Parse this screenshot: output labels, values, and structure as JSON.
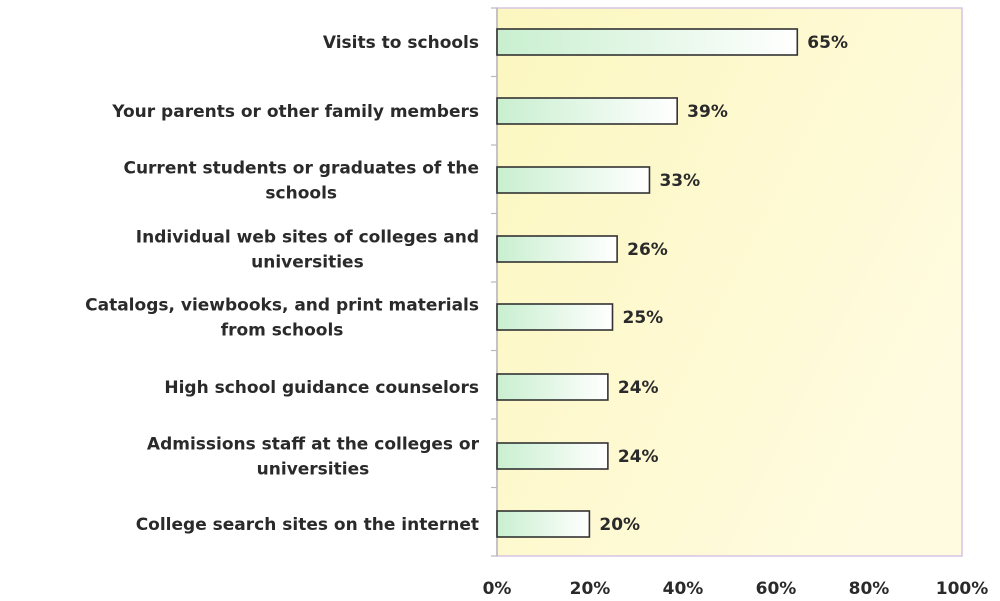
{
  "chart_data": {
    "type": "bar",
    "orientation": "horizontal",
    "categories": [
      "Visits to schools",
      "Your parents or other family members",
      "Current students or graduates of the schools",
      "Individual web sites of colleges and universities",
      "Catalogs, viewbooks, and print materials from schools",
      "High school guidance counselors",
      "Admissions staff at the colleges or universities",
      "College search sites on the internet"
    ],
    "category_lines": [
      [
        "Visits to schools"
      ],
      [
        "Your parents or other family members"
      ],
      [
        "Current students or graduates of the",
        "schools"
      ],
      [
        "Individual web sites of colleges and",
        "universities"
      ],
      [
        "Catalogs, viewbooks, and print materials",
        "from schools"
      ],
      [
        "High school guidance counselors"
      ],
      [
        "Admissions staff at the colleges or",
        "universities"
      ],
      [
        "College search sites on the internet"
      ]
    ],
    "values": [
      65,
      39,
      33,
      26,
      25,
      24,
      24,
      20
    ],
    "value_labels": [
      "65%",
      "39%",
      "33%",
      "26%",
      "25%",
      "24%",
      "24%",
      "20%"
    ],
    "xlim": [
      0,
      100
    ],
    "xticks": [
      0,
      20,
      40,
      60,
      80,
      100
    ],
    "xtick_labels": [
      "0%",
      "20%",
      "40%",
      "60%",
      "80%",
      "100%"
    ],
    "title": "",
    "xlabel": "",
    "ylabel": "",
    "grid": false,
    "legend": "none",
    "colors": {
      "plot_bg_start": "#fcf7bf",
      "plot_bg_end": "#fffbe0",
      "bar_fill_left": "#c9efcf",
      "bar_fill_right": "#ffffff",
      "bar_stroke": "#333333",
      "plot_border": "#d9c3e6"
    }
  }
}
